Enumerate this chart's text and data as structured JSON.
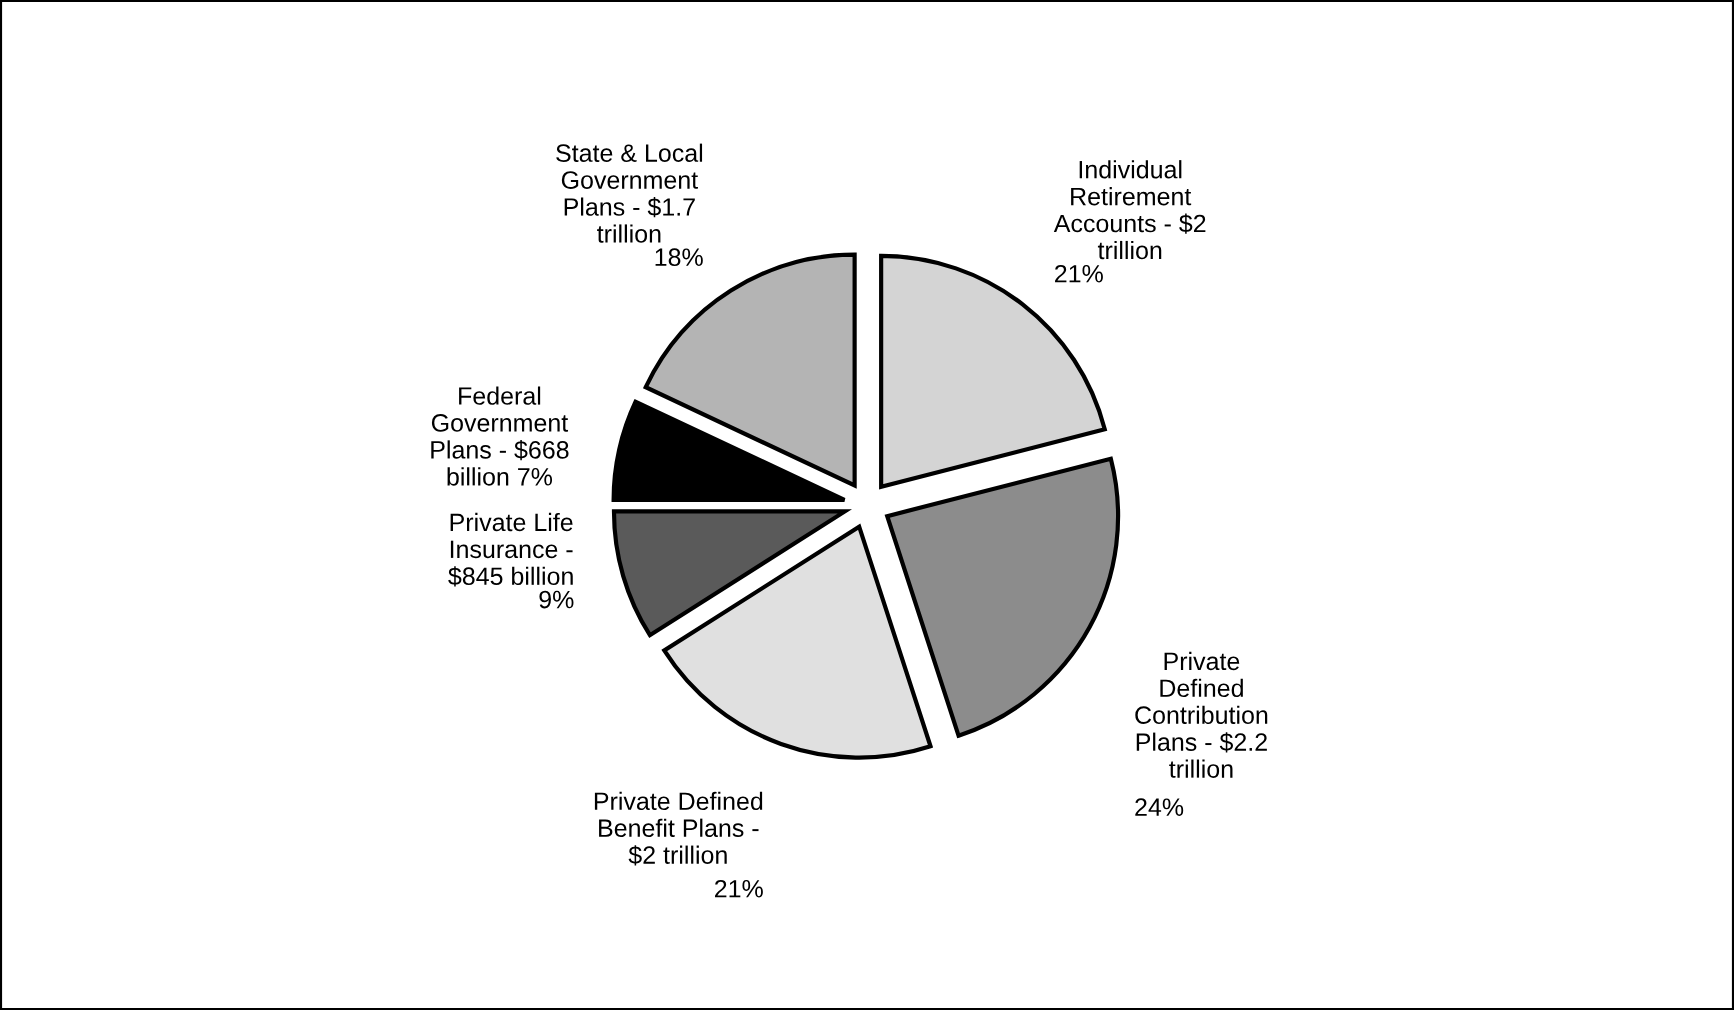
{
  "chart_data": {
    "type": "pie",
    "categories": [
      "Individual\nRetirement\nAccounts - $2\ntrillion",
      "Private\nDefined\nContribution\nPlans - $2.2\ntrillion",
      "Private Defined\nBenefit Plans -\n$2 trillion",
      "Private Life\nInsurance -\n$845 billion",
      "Federal\nGovernment\nPlans - $668\nbillion",
      "State & Local\nGovernment\nPlans - $1.7\ntrillion"
    ],
    "values": [
      21,
      24,
      21,
      9,
      7,
      18
    ],
    "value_labels": [
      "21%",
      "24%",
      "21%",
      "9%",
      "7%",
      "18%"
    ],
    "colors": [
      "#d4d4d4",
      "#8c8c8c",
      "#e0e0e0",
      "#5a5a5a",
      "#000000",
      "#b4b4b4"
    ],
    "legend": false
  }
}
